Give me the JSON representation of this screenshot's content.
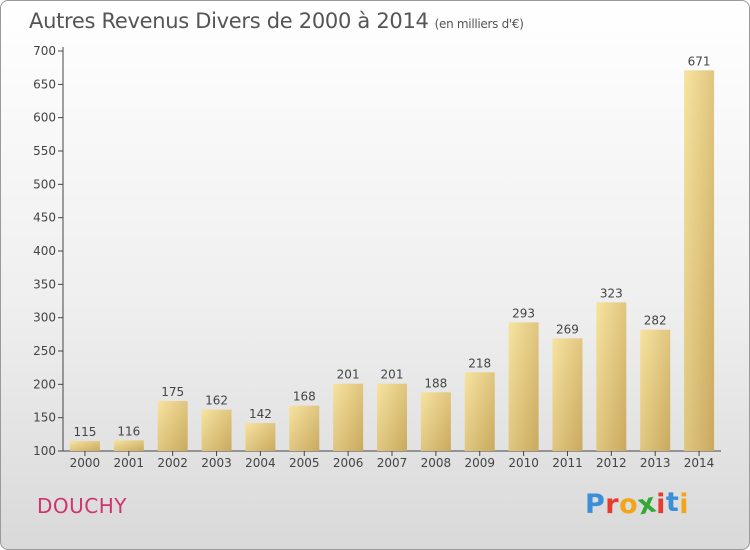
{
  "header": {
    "title": "Autres Revenus Divers de 2000 à 2014",
    "unit": "(en milliers d'€)"
  },
  "footer": {
    "place": "DOUCHY",
    "logo": "Proxiti"
  },
  "colors": {
    "bar_light": "#f7e3a0",
    "bar_dark": "#c9a95e",
    "axis": "#444444",
    "place": "#d1336e",
    "logo_letters": [
      "#3a8fd6",
      "#e63b2e",
      "#f2a516",
      "#33a838",
      "#e63b2e",
      "#3a8fd6",
      "#f2a516"
    ]
  },
  "chart_data": {
    "type": "bar",
    "categories": [
      "2000",
      "2001",
      "2002",
      "2003",
      "2004",
      "2005",
      "2006",
      "2007",
      "2008",
      "2009",
      "2010",
      "2011",
      "2012",
      "2013",
      "2014"
    ],
    "values": [
      115,
      116,
      175,
      162,
      142,
      168,
      201,
      201,
      188,
      218,
      293,
      269,
      323,
      282,
      671
    ],
    "title": "Autres Revenus Divers de 2000 à 2014",
    "ylim": [
      100,
      700
    ],
    "yticks": [
      100,
      150,
      200,
      250,
      300,
      350,
      400,
      450,
      500,
      550,
      600,
      650,
      700
    ],
    "grid": false
  }
}
